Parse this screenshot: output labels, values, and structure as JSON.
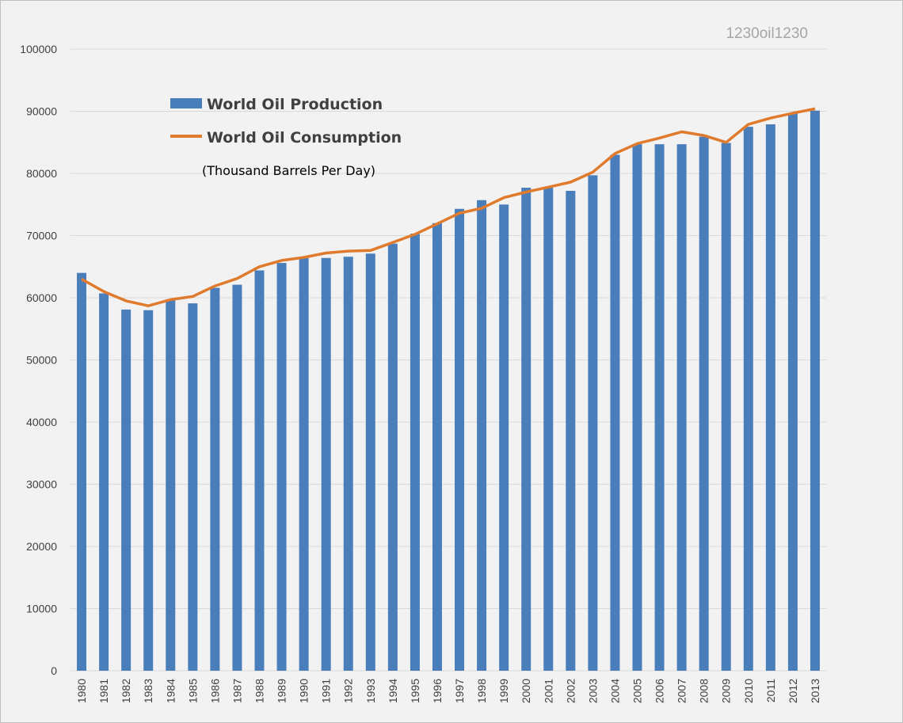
{
  "watermark": "1230oil1230",
  "legend": {
    "production_label": "World Oil Production",
    "consumption_label": "World Oil Consumption",
    "units_note": "(Thousand Barrels Per Day)"
  },
  "colors": {
    "production": "#4a7ebb",
    "consumption": "#e07b2e",
    "grid": "#d9d9d9",
    "background": "#f2f2f2"
  },
  "chart_data": {
    "type": "bar",
    "categories": [
      "1980",
      "1981",
      "1982",
      "1983",
      "1984",
      "1985",
      "1986",
      "1987",
      "1988",
      "1989",
      "1990",
      "1991",
      "1992",
      "1993",
      "1994",
      "1995",
      "1996",
      "1997",
      "1998",
      "1999",
      "2000",
      "2001",
      "2002",
      "2003",
      "2004",
      "2005",
      "2006",
      "2007",
      "2008",
      "2009",
      "2010",
      "2011",
      "2012",
      "2013"
    ],
    "series": [
      {
        "name": "World Oil Production",
        "type": "bar",
        "values": [
          64000,
          60700,
          58100,
          58000,
          59700,
          59100,
          61600,
          62100,
          64400,
          65600,
          66400,
          66400,
          66600,
          67100,
          68700,
          70300,
          72000,
          74300,
          75700,
          75000,
          77700,
          77700,
          77200,
          79700,
          83000,
          84700,
          84700,
          84700,
          85900,
          84900,
          87500,
          87900,
          89700,
          90100
        ]
      },
      {
        "name": "World Oil Consumption",
        "type": "line",
        "values": [
          63000,
          61000,
          59500,
          58700,
          59700,
          60200,
          61900,
          63100,
          65000,
          66000,
          66500,
          67200,
          67500,
          67600,
          68900,
          70200,
          71900,
          73600,
          74400,
          76100,
          77000,
          77800,
          78600,
          80200,
          83200,
          84800,
          85700,
          86700,
          86100,
          85000,
          87900,
          88900,
          89700,
          90400
        ]
      }
    ],
    "ylim": [
      0,
      100000
    ],
    "yticks": [
      0,
      10000,
      20000,
      30000,
      40000,
      50000,
      60000,
      70000,
      80000,
      90000,
      100000
    ],
    "grid": true,
    "legend_position": "top-left"
  }
}
